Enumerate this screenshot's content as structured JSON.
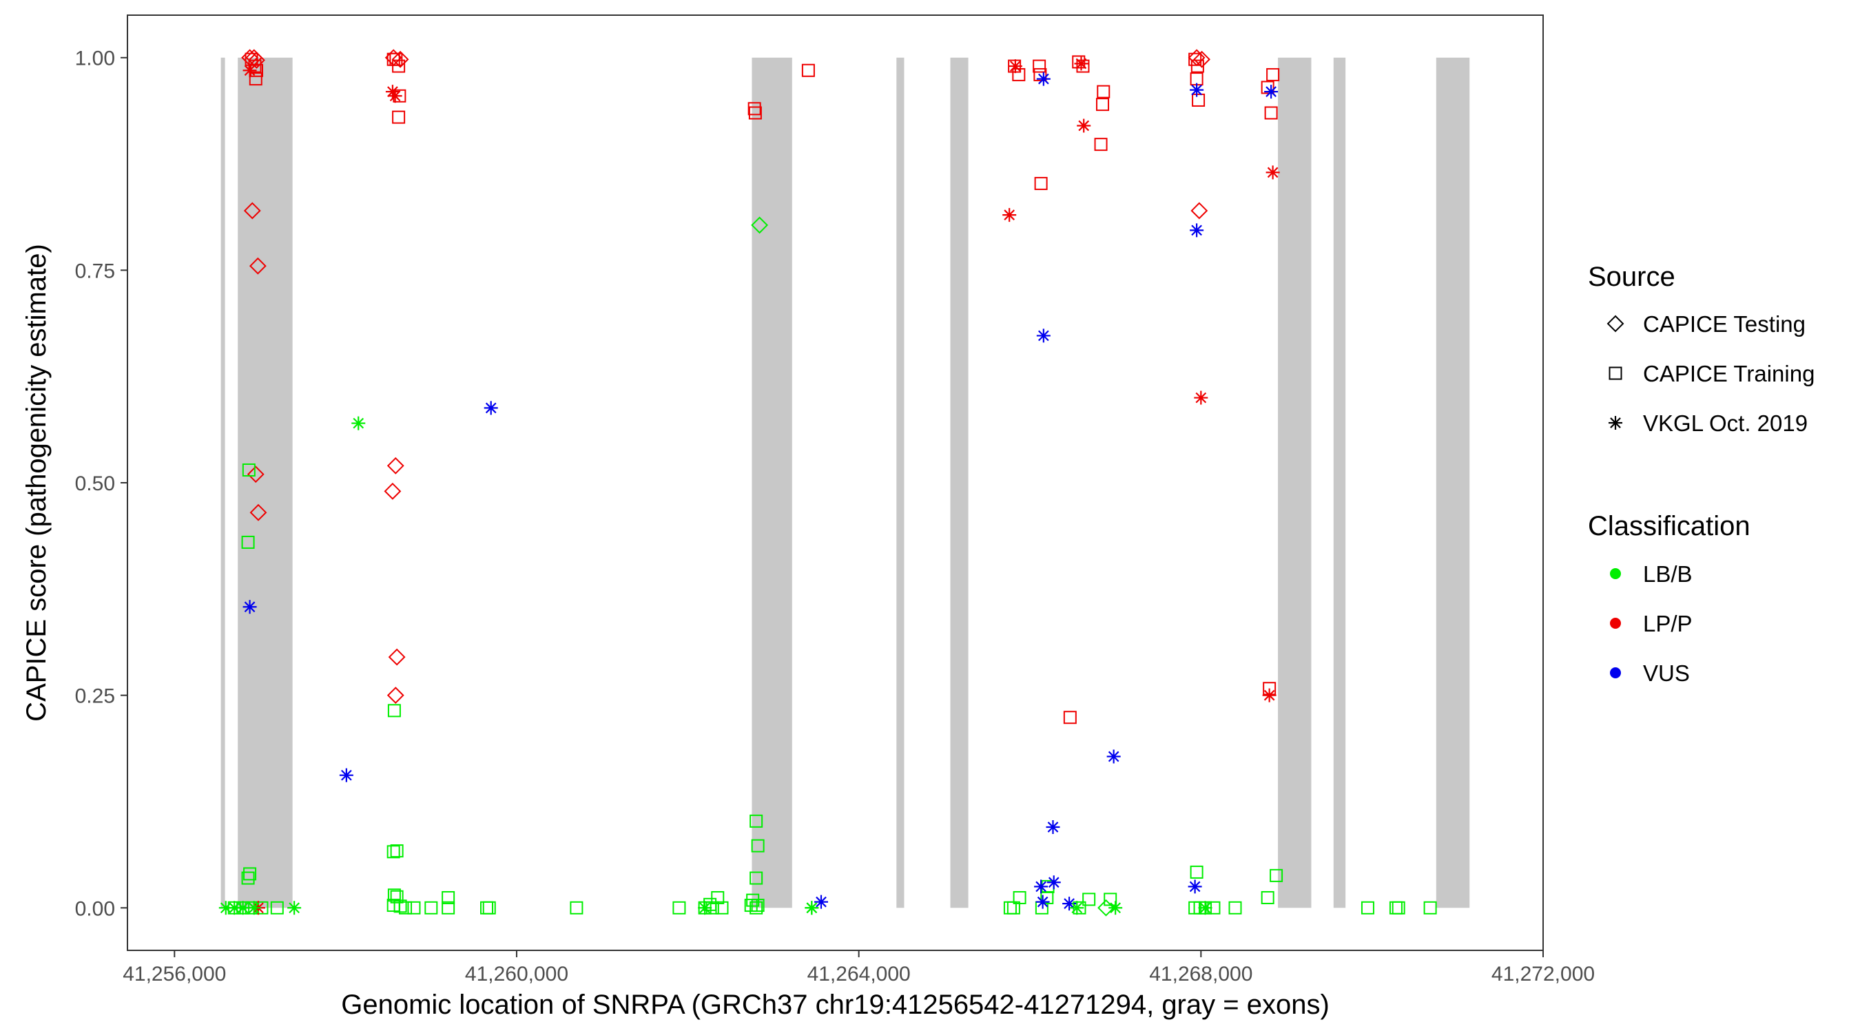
{
  "chart_data": {
    "type": "scatter",
    "xlabel": "Genomic location of SNRPA (GRCh37 chr19:41256542-41271294, gray = exons)",
    "ylabel": "CAPICE score (pathogenicity estimate)",
    "xlim": [
      41255450,
      41272000
    ],
    "ylim": [
      -0.05,
      1.05
    ],
    "grid": false,
    "background": "#ffffff",
    "x_ticks": [
      {
        "value": 41256000,
        "label": "41,256,000"
      },
      {
        "value": 41260000,
        "label": "41,260,000"
      },
      {
        "value": 41264000,
        "label": "41,264,000"
      },
      {
        "value": 41268000,
        "label": "41,268,000"
      },
      {
        "value": 41272000,
        "label": "41,272,000"
      }
    ],
    "y_ticks": [
      {
        "value": 0.0,
        "label": "0.00"
      },
      {
        "value": 0.25,
        "label": "0.25"
      },
      {
        "value": 0.5,
        "label": "0.50"
      },
      {
        "value": 0.75,
        "label": "0.75"
      },
      {
        "value": 1.0,
        "label": "1.00"
      }
    ],
    "exon_color": "#c8c8c8",
    "exons": [
      [
        41256542,
        41256590
      ],
      [
        41256740,
        41257380
      ],
      [
        41262750,
        41263220
      ],
      [
        41264440,
        41264530
      ],
      [
        41265070,
        41265280
      ],
      [
        41268900,
        41269290
      ],
      [
        41269550,
        41269690
      ],
      [
        41270750,
        41271140
      ]
    ],
    "legend": {
      "placement": "right",
      "source_title": "Source",
      "source_entries": [
        {
          "shape": "diamond",
          "label": "CAPICE Testing"
        },
        {
          "shape": "square",
          "label": "CAPICE Training"
        },
        {
          "shape": "asterisk",
          "label": "VKGL Oct. 2019"
        }
      ],
      "class_title": "Classification",
      "class_entries": [
        {
          "key": "LB/B",
          "label": "LB/B",
          "color": "#00ee00"
        },
        {
          "key": "LP/P",
          "label": "LP/P",
          "color": "#ee0000"
        },
        {
          "key": "VUS",
          "label": "VUS",
          "color": "#0000ee"
        }
      ]
    },
    "series": [
      {
        "source": "CAPICE Testing",
        "class": "LP/P",
        "points": [
          [
            41256910,
            0.82
          ],
          [
            41256975,
            0.755
          ],
          [
            41256950,
            0.51
          ],
          [
            41256980,
            0.465
          ],
          [
            41258585,
            0.52
          ],
          [
            41258550,
            0.49
          ],
          [
            41258600,
            0.295
          ],
          [
            41258585,
            0.25
          ],
          [
            41267980,
            0.82
          ],
          [
            41256880,
            1.0
          ],
          [
            41256930,
            1.0
          ],
          [
            41256960,
            0.997
          ],
          [
            41258560,
            1.0
          ],
          [
            41258640,
            0.998
          ],
          [
            41267950,
            1.0
          ],
          [
            41268010,
            0.998
          ]
        ]
      },
      {
        "source": "CAPICE Testing",
        "class": "LB/B",
        "points": [
          [
            41262840,
            0.803
          ],
          [
            41266890,
            0.0
          ]
        ]
      },
      {
        "source": "CAPICE Training",
        "class": "LP/P",
        "points": [
          [
            41256900,
            0.998
          ],
          [
            41256940,
            0.99
          ],
          [
            41256960,
            0.985
          ],
          [
            41256950,
            0.975
          ],
          [
            41258560,
            0.998
          ],
          [
            41258620,
            0.99
          ],
          [
            41258630,
            0.955
          ],
          [
            41258620,
            0.93
          ],
          [
            41258590,
            0.998
          ],
          [
            41262780,
            0.94
          ],
          [
            41262790,
            0.935
          ],
          [
            41263410,
            0.985
          ],
          [
            41265820,
            0.99
          ],
          [
            41265870,
            0.98
          ],
          [
            41266110,
            0.99
          ],
          [
            41266120,
            0.98
          ],
          [
            41266570,
            0.995
          ],
          [
            41266620,
            0.99
          ],
          [
            41266860,
            0.96
          ],
          [
            41266850,
            0.945
          ],
          [
            41266830,
            0.898
          ],
          [
            41266130,
            0.852
          ],
          [
            41266470,
            0.224
          ],
          [
            41267930,
            0.998
          ],
          [
            41267960,
            0.99
          ],
          [
            41267950,
            0.975
          ],
          [
            41267970,
            0.95
          ],
          [
            41268780,
            0.965
          ],
          [
            41268840,
            0.98
          ],
          [
            41268820,
            0.935
          ],
          [
            41268800,
            0.258
          ]
        ]
      },
      {
        "source": "CAPICE Training",
        "class": "LB/B",
        "points": [
          [
            41256870,
            0.515
          ],
          [
            41256860,
            0.43
          ],
          [
            41256880,
            0.04
          ],
          [
            41256860,
            0.035
          ],
          [
            41256700,
            0.0
          ],
          [
            41256800,
            0.0
          ],
          [
            41256900,
            0.0
          ],
          [
            41257020,
            0.0
          ],
          [
            41257200,
            0.0
          ],
          [
            41258570,
            0.232
          ],
          [
            41258560,
            0.066
          ],
          [
            41258600,
            0.067
          ],
          [
            41258570,
            0.015
          ],
          [
            41258600,
            0.013
          ],
          [
            41258560,
            0.003
          ],
          [
            41258640,
            0.002
          ],
          [
            41258700,
            0.0
          ],
          [
            41258800,
            0.0
          ],
          [
            41259000,
            0.0
          ],
          [
            41259200,
            0.012
          ],
          [
            41259200,
            0.0
          ],
          [
            41259650,
            0.0
          ],
          [
            41259680,
            0.0
          ],
          [
            41260700,
            0.0
          ],
          [
            41261900,
            0.0
          ],
          [
            41262200,
            0.0
          ],
          [
            41262260,
            0.004
          ],
          [
            41262290,
            0.0
          ],
          [
            41262350,
            0.012
          ],
          [
            41262400,
            0.0
          ],
          [
            41262800,
            0.102
          ],
          [
            41262820,
            0.073
          ],
          [
            41262800,
            0.035
          ],
          [
            41262760,
            0.009
          ],
          [
            41262740,
            0.003
          ],
          [
            41262800,
            0.0
          ],
          [
            41262820,
            0.003
          ],
          [
            41265770,
            0.0
          ],
          [
            41265810,
            0.0
          ],
          [
            41265880,
            0.012
          ],
          [
            41266140,
            0.0
          ],
          [
            41266200,
            0.012
          ],
          [
            41266210,
            0.025
          ],
          [
            41266580,
            0.0
          ],
          [
            41266690,
            0.01
          ],
          [
            41266940,
            0.01
          ],
          [
            41267950,
            0.042
          ],
          [
            41267930,
            0.0
          ],
          [
            41267990,
            0.0
          ],
          [
            41268050,
            0.0
          ],
          [
            41268150,
            0.0
          ],
          [
            41268400,
            0.0
          ],
          [
            41268780,
            0.012
          ],
          [
            41268880,
            0.038
          ],
          [
            41269950,
            0.0
          ],
          [
            41270280,
            0.0
          ],
          [
            41270310,
            0.0
          ],
          [
            41270680,
            0.0
          ]
        ]
      },
      {
        "source": "VKGL Oct. 2019",
        "class": "LP/P",
        "points": [
          [
            41256880,
            0.985
          ],
          [
            41256980,
            0.0
          ],
          [
            41258550,
            0.96
          ],
          [
            41258580,
            0.955
          ],
          [
            41265760,
            0.815
          ],
          [
            41265830,
            0.99
          ],
          [
            41266600,
            0.993
          ],
          [
            41266630,
            0.92
          ],
          [
            41268000,
            0.6
          ],
          [
            41268840,
            0.865
          ],
          [
            41268800,
            0.25
          ]
        ]
      },
      {
        "source": "VKGL Oct. 2019",
        "class": "VUS",
        "points": [
          [
            41256880,
            0.354
          ],
          [
            41258010,
            0.156
          ],
          [
            41259700,
            0.588
          ],
          [
            41263560,
            0.007
          ],
          [
            41266160,
            0.975
          ],
          [
            41266160,
            0.673
          ],
          [
            41266980,
            0.178
          ],
          [
            41266270,
            0.095
          ],
          [
            41266130,
            0.025
          ],
          [
            41266280,
            0.03
          ],
          [
            41266150,
            0.007
          ],
          [
            41266460,
            0.005
          ],
          [
            41267950,
            0.962
          ],
          [
            41267950,
            0.797
          ],
          [
            41267930,
            0.025
          ],
          [
            41268820,
            0.96
          ]
        ]
      },
      {
        "source": "VKGL Oct. 2019",
        "class": "LB/B",
        "points": [
          [
            41256600,
            0.0
          ],
          [
            41256700,
            0.0
          ],
          [
            41256800,
            0.0
          ],
          [
            41256930,
            0.0
          ],
          [
            41257400,
            0.0
          ],
          [
            41258150,
            0.57
          ],
          [
            41262200,
            0.0
          ],
          [
            41263450,
            0.0
          ],
          [
            41263450,
            0.0
          ],
          [
            41266550,
            0.0
          ],
          [
            41267000,
            0.0
          ],
          [
            41268050,
            0.0
          ]
        ]
      }
    ]
  }
}
